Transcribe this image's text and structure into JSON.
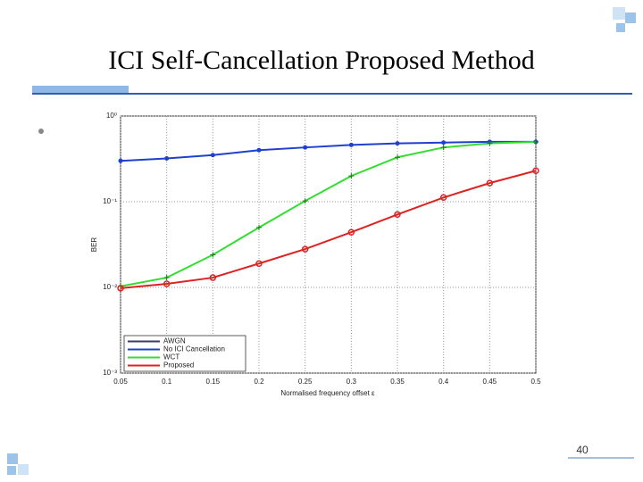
{
  "slide": {
    "title": "ICI Self-Cancellation Proposed Method",
    "page_number": "40"
  },
  "chart_data": {
    "type": "line",
    "ylabel": "BER",
    "xlabel": "Normalised frequency offset ε",
    "x": [
      0.05,
      0.1,
      0.15,
      0.2,
      0.25,
      0.3,
      0.35,
      0.4,
      0.45,
      0.5
    ],
    "xlim": [
      0.05,
      0.5
    ],
    "xticks": [
      0.05,
      0.1,
      0.15,
      0.2,
      0.25,
      0.3,
      0.35,
      0.4,
      0.45,
      0.5
    ],
    "ylim": [
      0.001,
      1
    ],
    "log_y": true,
    "yticks": [
      {
        "value": 0.001,
        "label": "10⁻³"
      },
      {
        "value": 0.01,
        "label": "10⁻²"
      },
      {
        "value": 0.1,
        "label": "10⁻¹"
      },
      {
        "value": 1,
        "label": "10⁰"
      }
    ],
    "grid": true,
    "legend": "lower left",
    "series": [
      {
        "name": "AWGN",
        "color": "#3a3a6a",
        "marker": "none",
        "values": [
          null,
          null,
          null,
          null,
          null,
          null,
          null,
          null,
          null,
          null
        ]
      },
      {
        "name": "No ICI Cancellation",
        "color": "#1f3fd0",
        "marker": "dot",
        "values": [
          0.3,
          0.32,
          0.35,
          0.4,
          0.43,
          0.46,
          0.48,
          0.49,
          0.5,
          0.5
        ]
      },
      {
        "name": "WCT",
        "color": "#33dd33",
        "marker": "plus",
        "values": [
          0.0103,
          0.013,
          0.024,
          0.05,
          0.102,
          0.2,
          0.33,
          0.43,
          0.48,
          0.5
        ]
      },
      {
        "name": "Proposed",
        "color": "#dd2222",
        "marker": "circle",
        "values": [
          0.0098,
          0.011,
          0.013,
          0.019,
          0.028,
          0.044,
          0.071,
          0.112,
          0.165,
          0.23
        ]
      }
    ]
  }
}
